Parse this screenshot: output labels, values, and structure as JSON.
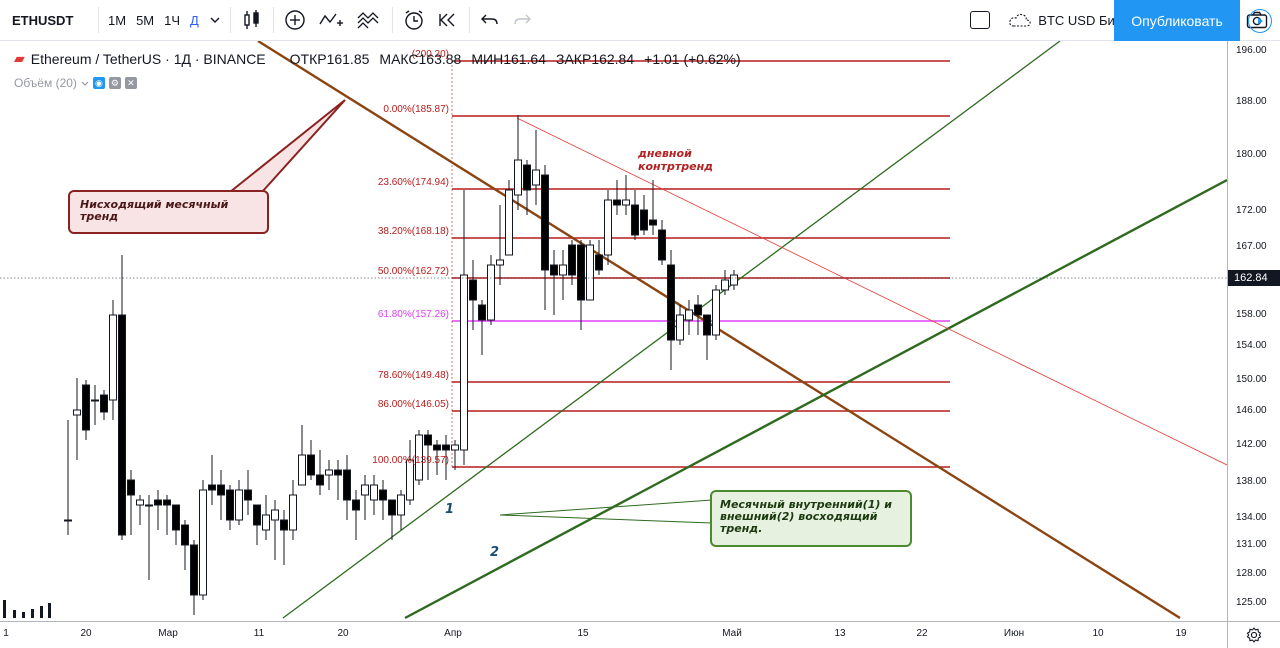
{
  "toolbar": {
    "symbol": "ETHUSDT",
    "intervals": [
      "1M",
      "5M",
      "1Ч",
      "Д"
    ],
    "active_interval": "Д",
    "compare_label": "BTC USD Бина...",
    "publish_label": "Опубликовать"
  },
  "legend": {
    "title": "Ethereum / TetherUS · 1Д · BINANCE",
    "open_label": "ОТКР",
    "open": "161.85",
    "high_label": "МАКС",
    "high": "163.88",
    "low_label": "МИН",
    "low": "161.64",
    "close_label": "ЗАКР",
    "close": "162.84",
    "change": "+1.01 (+0.62%)",
    "volume_label": "Объём (20)"
  },
  "price_axis": {
    "ticks": [
      "196.00",
      "188.00",
      "180.00",
      "172.00",
      "167.00",
      "162.00",
      "158.00",
      "154.00",
      "150.00",
      "146.00",
      "142.00",
      "138.00",
      "134.00",
      "131.00",
      "128.00",
      "125.00"
    ],
    "last_price": "162.84"
  },
  "time_axis": {
    "ticks": [
      "1",
      "20",
      "Мар",
      "11",
      "20",
      "Апр",
      "15",
      "Май",
      "13",
      "22",
      "Июн",
      "10",
      "19"
    ]
  },
  "fib_levels": [
    {
      "label": "(200.20)",
      "pink": false
    },
    {
      "label": "0.00%(185.87)",
      "pink": false
    },
    {
      "label": "23.60%(174.94)",
      "pink": false
    },
    {
      "label": "38.20%(168.18)",
      "pink": false
    },
    {
      "label": "50.00%(162.72)",
      "pink": false
    },
    {
      "label": "61.80%(157.26)",
      "pink": true
    },
    {
      "label": "78.60%(149.48)",
      "pink": false
    },
    {
      "label": "86.00%(146.05)",
      "pink": false
    },
    {
      "label": "100.00%(139.57)",
      "pink": false
    }
  ],
  "annotations": {
    "monthly_down": "Нисходящий месячный тренд",
    "daily_counter": "дневной контртренд",
    "monthly_up": "Месячный внутренний(1) и внешний(2) восходящий тренд.",
    "num1": "1",
    "num2": "2"
  },
  "colors": {
    "up_candle": "#ffffff",
    "down_candle": "#000000",
    "fib_line": "#b71c1c",
    "fib_pink": "#e040fb",
    "down_trend": "#8b4513",
    "up_trend": "#2e6b1f",
    "accent": "#2196f3"
  }
}
